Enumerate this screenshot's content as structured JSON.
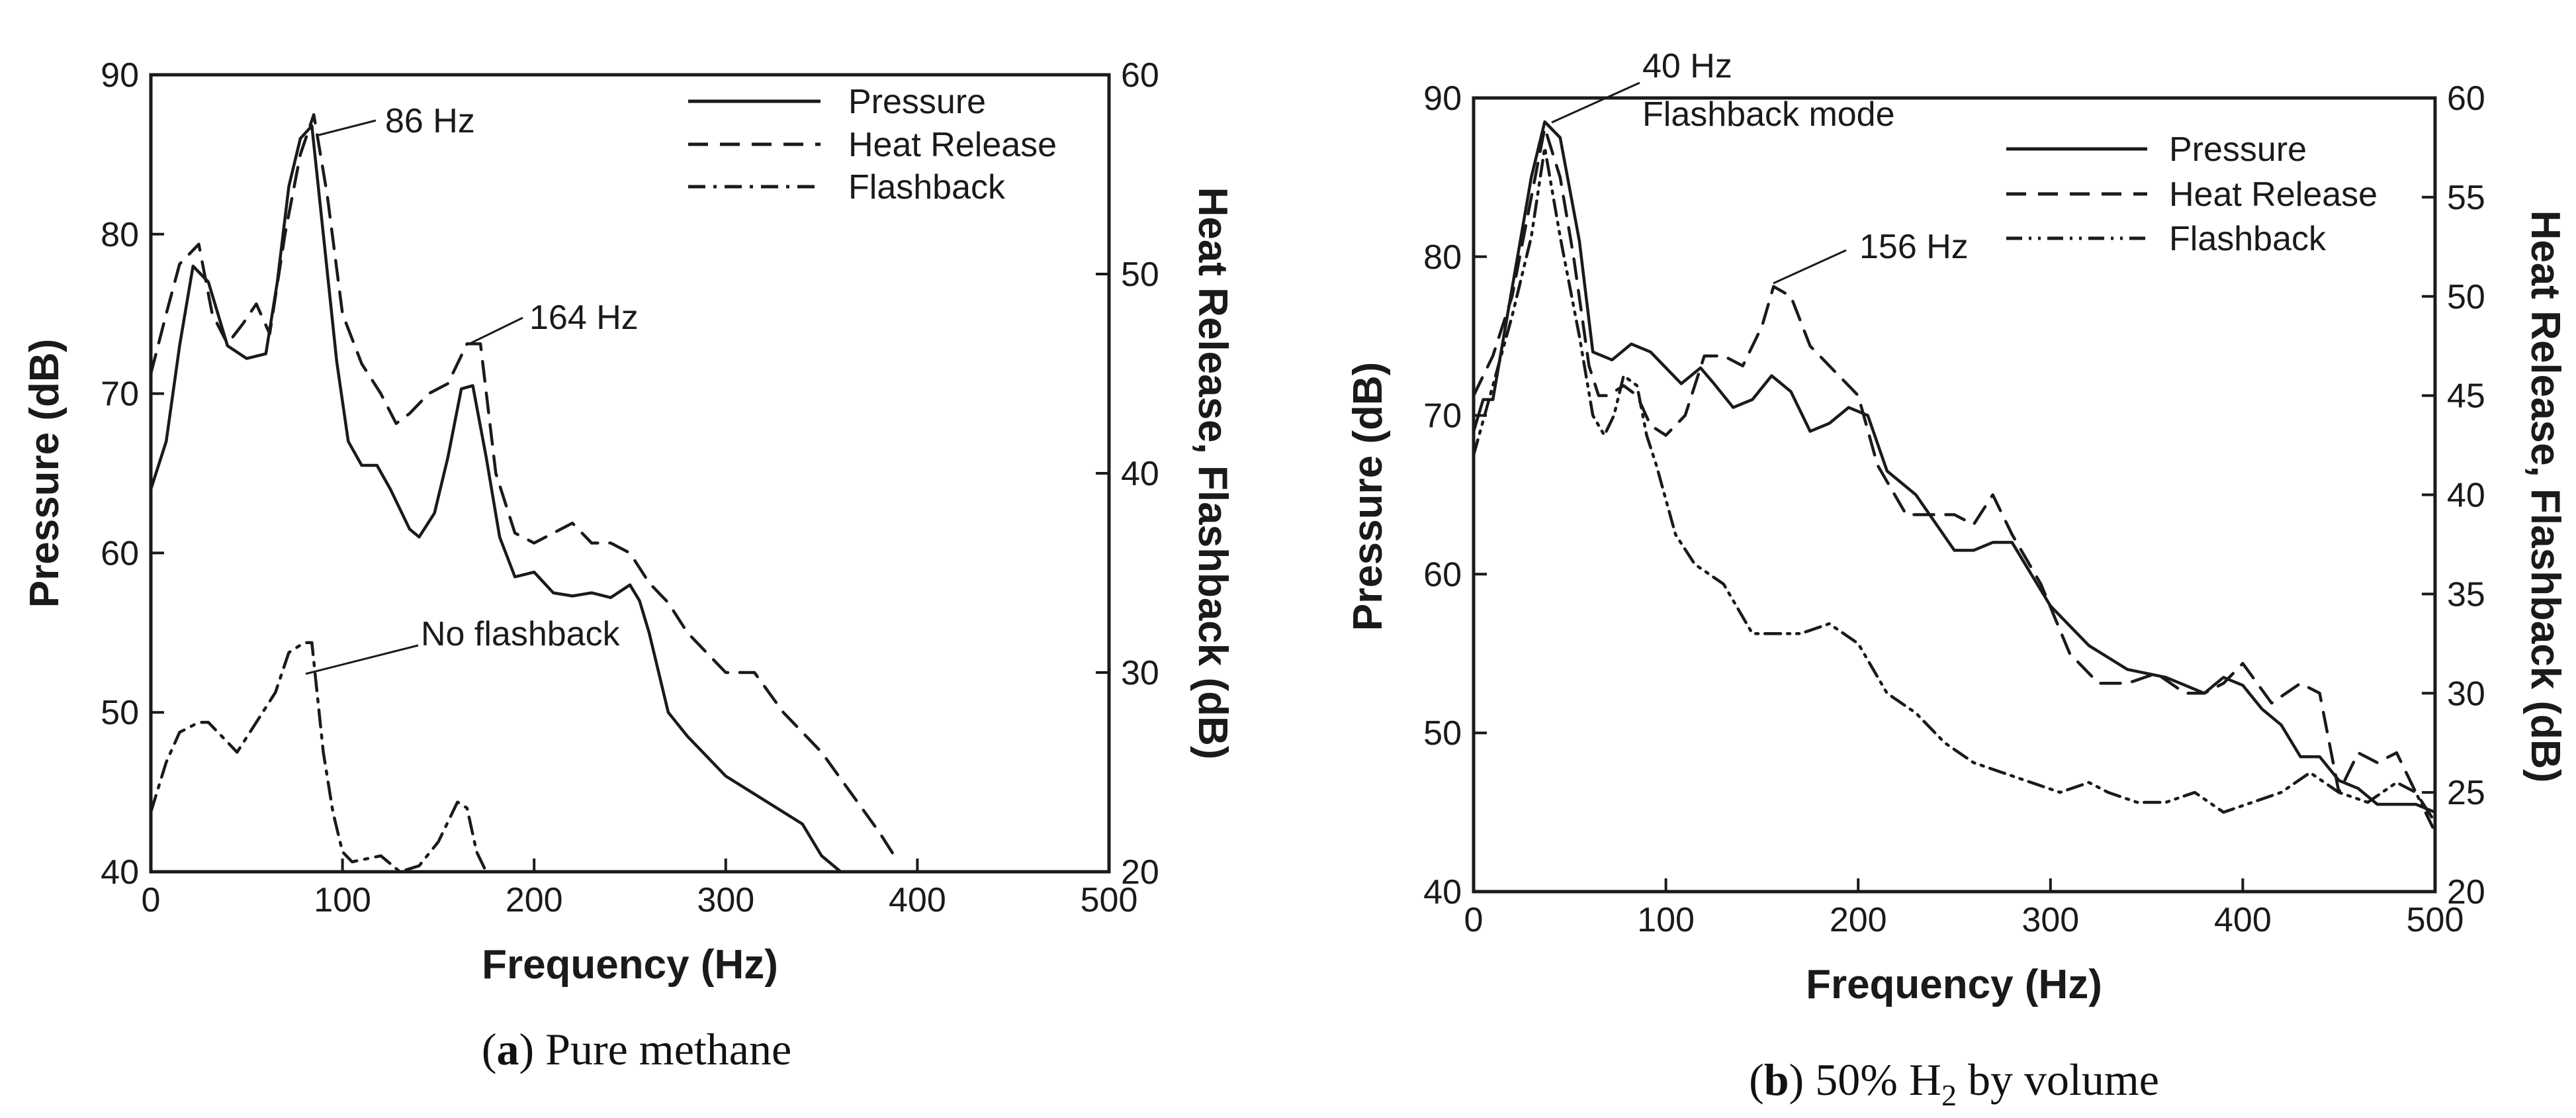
{
  "figure_captions": [
    {
      "letter": "a",
      "text": ") Pure methane"
    },
    {
      "letter": "b",
      "text": ") 50% H",
      "sub": "2",
      "tail": " by volume"
    }
  ],
  "chart_data": [
    {
      "panel": "a",
      "type": "line",
      "xlabel": "Frequency (Hz)",
      "ylabel": "Pressure (dB)",
      "ylabel_right": "Heat Release, Flashback (dB)",
      "xlim": [
        0,
        500
      ],
      "ylim": [
        40,
        90
      ],
      "ylim_right": [
        20,
        60
      ],
      "xticks": [
        0,
        100,
        200,
        300,
        400,
        500
      ],
      "yticks": [
        40,
        50,
        60,
        70,
        80,
        90
      ],
      "yticks_right": [
        20,
        30,
        40,
        50,
        60
      ],
      "grid": false,
      "legend_position": "top-right",
      "series": [
        {
          "name": "Pressure",
          "axis": "left",
          "style": "solid",
          "x": [
            0,
            8,
            15,
            22,
            30,
            40,
            50,
            60,
            66,
            72,
            78,
            84,
            90,
            97,
            103,
            110,
            118,
            125,
            135,
            140,
            148,
            155,
            162,
            168,
            175,
            182,
            190,
            200,
            210,
            220,
            230,
            240,
            250,
            255,
            260,
            270,
            280,
            300,
            320,
            340,
            350,
            360
          ],
          "y": [
            64,
            67,
            73,
            78,
            77,
            73,
            72.2,
            72.5,
            77,
            83,
            86,
            86.8,
            80,
            72,
            67,
            65.5,
            65.5,
            64,
            61.5,
            61,
            62.5,
            66,
            70.3,
            70.5,
            66,
            61,
            58.5,
            58.8,
            57.5,
            57.3,
            57.5,
            57.2,
            58,
            57,
            55,
            50,
            48.5,
            46,
            44.5,
            43,
            41,
            40
          ]
        },
        {
          "name": "Heat Release",
          "axis": "right",
          "style": "dashed",
          "x": [
            0,
            8,
            15,
            25,
            32,
            40,
            48,
            55,
            62,
            70,
            78,
            85,
            92,
            100,
            110,
            120,
            128,
            135,
            145,
            155,
            165,
            172,
            180,
            190,
            200,
            210,
            220,
            230,
            240,
            250,
            260,
            270,
            280,
            290,
            300,
            315,
            330,
            350,
            365,
            380,
            390
          ],
          "y": [
            45,
            48,
            50.5,
            51.5,
            48,
            46.5,
            47.5,
            48.5,
            47,
            52,
            56,
            58,
            54,
            48,
            45.5,
            44,
            42.5,
            43,
            44,
            44.5,
            46.5,
            46.5,
            40,
            37,
            36.5,
            37,
            37.5,
            36.5,
            36.5,
            36,
            34.5,
            33.5,
            32,
            31,
            30,
            30,
            28,
            26,
            24,
            22,
            20.5
          ]
        },
        {
          "name": "Flashback",
          "axis": "right",
          "style": "dashdot",
          "x": [
            0,
            8,
            15,
            25,
            30,
            40,
            45,
            55,
            65,
            72,
            80,
            84,
            90,
            95,
            100,
            105,
            120,
            130,
            140,
            150,
            160,
            165,
            170,
            175
          ],
          "y": [
            23,
            25.5,
            27,
            27.5,
            27.5,
            26.5,
            26,
            27.5,
            29,
            31,
            31.5,
            31.5,
            26,
            23,
            21,
            20.5,
            20.8,
            20,
            20.3,
            21.5,
            23.5,
            23.2,
            21,
            20
          ]
        }
      ],
      "annotations": [
        {
          "text": "86 Hz"
        },
        {
          "text": "164 Hz"
        },
        {
          "text": "No flashback"
        }
      ]
    },
    {
      "panel": "b",
      "type": "line",
      "xlabel": "Frequency (Hz)",
      "ylabel": "Pressure (dB)",
      "ylabel_right": "Heat Release, Flashback (dB)",
      "xlim": [
        0,
        500
      ],
      "ylim": [
        40,
        90
      ],
      "ylim_right": [
        20,
        60
      ],
      "xticks": [
        0,
        100,
        200,
        300,
        400,
        500
      ],
      "yticks": [
        40,
        50,
        60,
        70,
        80,
        90
      ],
      "yticks_right": [
        20,
        25,
        30,
        35,
        40,
        45,
        50,
        55,
        60
      ],
      "grid": false,
      "legend_position": "top-right",
      "series": [
        {
          "name": "Pressure",
          "axis": "left",
          "style": "solid",
          "x": [
            0,
            5,
            10,
            20,
            30,
            37,
            45,
            55,
            62,
            72,
            82,
            92,
            100,
            108,
            118,
            125,
            135,
            145,
            155,
            165,
            175,
            185,
            195,
            205,
            215,
            230,
            250,
            260,
            270,
            280,
            290,
            300,
            320,
            340,
            360,
            380,
            390,
            400,
            410,
            420,
            430,
            440,
            450,
            460,
            470,
            480,
            490,
            500
          ],
          "y": [
            69,
            71,
            71,
            78,
            85,
            88.5,
            87.5,
            81,
            74,
            73.5,
            74.5,
            74,
            73,
            72,
            73,
            72,
            70.5,
            71,
            72.5,
            71.5,
            69,
            69.5,
            70.5,
            70,
            66.5,
            65,
            61.5,
            61.5,
            62,
            62,
            60,
            58,
            55.5,
            54,
            53.5,
            52.5,
            53.5,
            53,
            51.5,
            50.5,
            48.5,
            48.5,
            47,
            46.5,
            45.5,
            45.5,
            45.5,
            45
          ]
        },
        {
          "name": "Heat Release",
          "axis": "right",
          "style": "dashed",
          "x": [
            0,
            10,
            20,
            30,
            37,
            45,
            52,
            60,
            65,
            70,
            78,
            85,
            92,
            100,
            110,
            120,
            130,
            140,
            150,
            156,
            165,
            175,
            185,
            195,
            200,
            210,
            225,
            240,
            250,
            260,
            270,
            280,
            295,
            310,
            325,
            340,
            355,
            370,
            380,
            390,
            400,
            415,
            430,
            440,
            450,
            460,
            470,
            480,
            490,
            500
          ],
          "y": [
            45,
            47,
            50,
            55,
            58.5,
            56,
            52,
            46.5,
            45,
            45,
            45.5,
            45,
            43.5,
            43,
            44,
            47,
            47,
            46.5,
            48.5,
            50.5,
            50,
            47.5,
            46.5,
            45.5,
            45,
            41.5,
            39,
            39,
            39,
            38.5,
            40,
            38,
            35.5,
            32,
            30.5,
            30.5,
            31,
            30,
            30,
            30.5,
            31.5,
            29.5,
            30.5,
            30,
            25,
            27,
            26.5,
            27,
            25,
            23.5
          ]
        },
        {
          "name": "Flashback",
          "axis": "right",
          "style": "dashdotdot",
          "x": [
            0,
            10,
            20,
            30,
            37,
            45,
            55,
            62,
            68,
            73,
            78,
            85,
            90,
            95,
            105,
            115,
            130,
            145,
            155,
            170,
            185,
            200,
            215,
            230,
            245,
            260,
            275,
            290,
            305,
            320,
            330,
            345,
            360,
            375,
            390,
            405,
            420,
            435,
            450,
            465,
            480,
            490,
            500
          ],
          "y": [
            42,
            45.5,
            49,
            53,
            57.5,
            53,
            48,
            44,
            43,
            44,
            46,
            45.5,
            43,
            41.5,
            38,
            36.5,
            35.5,
            33,
            33,
            33,
            33.5,
            32.5,
            30,
            29,
            27.5,
            26.5,
            26,
            25.5,
            25,
            25.5,
            25,
            24.5,
            24.5,
            25,
            24,
            24.5,
            25,
            26,
            25,
            24.5,
            25.5,
            25,
            23
          ]
        }
      ],
      "annotations": [
        {
          "text": "40 Hz"
        },
        {
          "text": "Flashback mode"
        },
        {
          "text": "156 Hz"
        }
      ]
    }
  ]
}
